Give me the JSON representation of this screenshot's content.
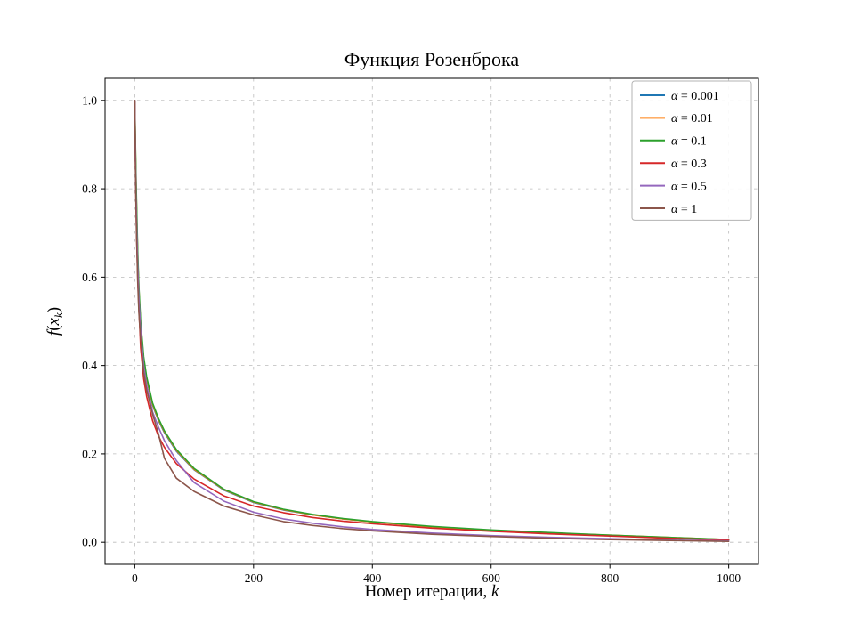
{
  "chart_data": {
    "type": "line",
    "title": "Функция Розенброка",
    "xlabel": "Номер итерации, ",
    "xlabel_math": "k",
    "ylabel": "f(x_k)",
    "xlim": [
      -50,
      1050
    ],
    "ylim": [
      -0.05,
      1.05
    ],
    "xticks": [
      0,
      200,
      400,
      600,
      800,
      1000
    ],
    "yticks": [
      0.0,
      0.2,
      0.4,
      0.6,
      0.8,
      1.0
    ],
    "grid": true,
    "legend_position": "upper right",
    "x": [
      0,
      1,
      2,
      3,
      5,
      7,
      10,
      15,
      20,
      30,
      40,
      50,
      70,
      100,
      150,
      200,
      250,
      300,
      350,
      400,
      500,
      600,
      700,
      800,
      900,
      1000
    ],
    "series": [
      {
        "name": "α = 0.001",
        "color": "#1f77b4",
        "values": [
          1.0,
          0.9,
          0.82,
          0.75,
          0.64,
          0.57,
          0.49,
          0.41,
          0.37,
          0.31,
          0.275,
          0.248,
          0.206,
          0.164,
          0.118,
          0.09,
          0.073,
          0.062,
          0.053,
          0.046,
          0.035,
          0.027,
          0.021,
          0.015,
          0.01,
          0.006
        ]
      },
      {
        "name": "α = 0.01",
        "color": "#ff7f0e",
        "values": [
          1.0,
          0.91,
          0.83,
          0.76,
          0.65,
          0.575,
          0.495,
          0.415,
          0.372,
          0.312,
          0.277,
          0.25,
          0.208,
          0.165,
          0.119,
          0.091,
          0.074,
          0.062,
          0.053,
          0.046,
          0.035,
          0.027,
          0.021,
          0.016,
          0.011,
          0.006
        ]
      },
      {
        "name": "α = 0.1",
        "color": "#2ca02c",
        "values": [
          1.0,
          0.92,
          0.84,
          0.77,
          0.66,
          0.58,
          0.5,
          0.42,
          0.375,
          0.315,
          0.28,
          0.252,
          0.21,
          0.167,
          0.12,
          0.092,
          0.075,
          0.063,
          0.054,
          0.047,
          0.036,
          0.028,
          0.022,
          0.016,
          0.011,
          0.006
        ]
      },
      {
        "name": "α = 0.3",
        "color": "#d62728",
        "values": [
          1.0,
          0.88,
          0.78,
          0.7,
          0.6,
          0.53,
          0.44,
          0.37,
          0.33,
          0.275,
          0.24,
          0.215,
          0.178,
          0.143,
          0.105,
          0.082,
          0.067,
          0.056,
          0.048,
          0.042,
          0.032,
          0.025,
          0.019,
          0.014,
          0.009,
          0.005
        ]
      },
      {
        "name": "α = 0.5",
        "color": "#9467bd",
        "values": [
          1.0,
          0.89,
          0.8,
          0.73,
          0.63,
          0.555,
          0.48,
          0.4,
          0.355,
          0.295,
          0.26,
          0.23,
          0.185,
          0.135,
          0.093,
          0.068,
          0.053,
          0.043,
          0.035,
          0.029,
          0.021,
          0.015,
          0.011,
          0.008,
          0.005,
          0.003
        ]
      },
      {
        "name": "α = 1",
        "color": "#8c564b",
        "values": [
          1.0,
          0.87,
          0.77,
          0.69,
          0.59,
          0.52,
          0.46,
          0.385,
          0.345,
          0.29,
          0.245,
          0.19,
          0.145,
          0.115,
          0.082,
          0.062,
          0.047,
          0.038,
          0.031,
          0.026,
          0.018,
          0.013,
          0.009,
          0.006,
          0.004,
          0.002
        ]
      }
    ],
    "style": {
      "grid_color": "#bbbbbb",
      "axis_color": "#000000",
      "legend_border_color": "#b3b3b3",
      "background": "#ffffff"
    }
  }
}
